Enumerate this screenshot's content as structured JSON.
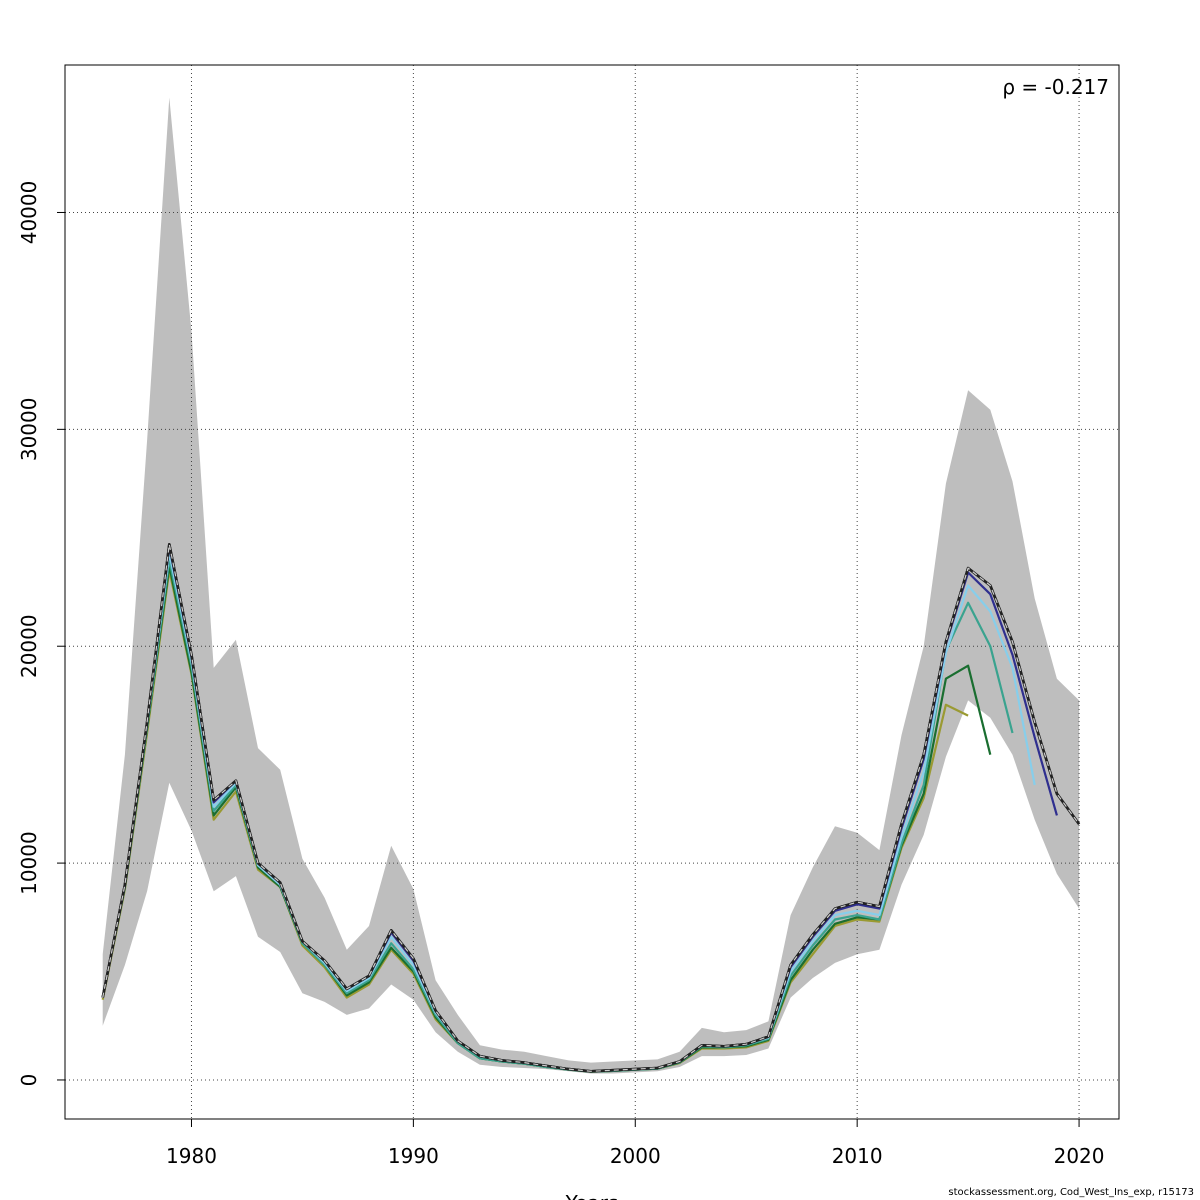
{
  "chart_data": {
    "type": "line",
    "title": "",
    "xlabel": "Years",
    "ylabel": "",
    "annotation": "ρ = -0.217",
    "xlim": [
      1974.3,
      2021.8
    ],
    "ylim": [
      -1800,
      46800
    ],
    "x_ticks": [
      1980,
      1990,
      2000,
      2010,
      2020
    ],
    "y_ticks": [
      0,
      10000,
      20000,
      30000,
      40000
    ],
    "grid": true,
    "legend": "none",
    "confidence_band": {
      "x": [
        1976,
        1977,
        1978,
        1979,
        1980,
        1981,
        1982,
        1983,
        1984,
        1985,
        1986,
        1987,
        1988,
        1989,
        1990,
        1991,
        1992,
        1993,
        1994,
        1995,
        1996,
        1997,
        1998,
        1999,
        2000,
        2001,
        2002,
        2003,
        2004,
        2005,
        2006,
        2007,
        2008,
        2009,
        2010,
        2011,
        2012,
        2013,
        2014,
        2015,
        2016,
        2017,
        2018,
        2019,
        2020
      ],
      "lower": [
        2500,
        5300,
        8700,
        13700,
        11500,
        8700,
        9400,
        6600,
        5900,
        4000,
        3600,
        3000,
        3300,
        4400,
        3700,
        2200,
        1300,
        700,
        600,
        550,
        500,
        400,
        300,
        300,
        350,
        400,
        600,
        1100,
        1100,
        1150,
        1450,
        3800,
        4700,
        5400,
        5800,
        6000,
        9000,
        11300,
        14900,
        17500,
        16700,
        15000,
        12000,
        9500,
        7900
      ],
      "upper": [
        5800,
        15000,
        29500,
        45300,
        34500,
        19000,
        20300,
        15300,
        14300,
        10200,
        8400,
        6000,
        7100,
        10800,
        8800,
        4600,
        3000,
        1600,
        1400,
        1300,
        1100,
        900,
        800,
        850,
        900,
        950,
        1300,
        2400,
        2200,
        2300,
        2700,
        7600,
        9800,
        11700,
        11400,
        10600,
        15900,
        20000,
        27500,
        31800,
        30900,
        27600,
        22200,
        18500,
        17500
      ]
    },
    "series": [
      {
        "x": [
          1976,
          1977,
          1978,
          1979,
          1980,
          1981,
          1982,
          1983,
          1984,
          1985,
          1986,
          1987,
          1988,
          1989,
          1990,
          1991,
          1992,
          1993,
          1994,
          1995,
          1996,
          1997,
          1998,
          1999,
          2000,
          2001,
          2002,
          2003,
          2004,
          2005,
          2006,
          2007,
          2008,
          2009,
          2010,
          2011,
          2012,
          2013,
          2014,
          2015,
          2016,
          2017,
          2018,
          2019,
          2020
        ],
        "values": [
          3800,
          9000,
          16500,
          24700,
          19600,
          12900,
          13800,
          10000,
          9100,
          6400,
          5500,
          4200,
          4800,
          6900,
          5600,
          3200,
          1800,
          1100,
          900,
          800,
          650,
          500,
          400,
          450,
          500,
          550,
          850,
          1600,
          1550,
          1650,
          2000,
          5300,
          6700,
          7900,
          8200,
          8000,
          11800,
          15000,
          20200,
          23600,
          22800,
          20200,
          16500,
          13200,
          11800
        ],
        "color": "#222222",
        "width": 2.6,
        "dashed": false
      },
      {
        "x": [
          1976,
          1977,
          1978,
          1979,
          1980,
          1981,
          1982,
          1983,
          1984,
          1985,
          1986,
          1987,
          1988,
          1989,
          1990,
          1991,
          1992,
          1993,
          1994,
          1995,
          1996,
          1997,
          1998,
          1999,
          2000,
          2001,
          2002,
          2003,
          2004,
          2005,
          2006,
          2007,
          2008,
          2009,
          2010,
          2011,
          2012,
          2013,
          2014,
          2015,
          2016,
          2017,
          2018,
          2019,
          2020
        ],
        "values": [
          3800,
          9000,
          16500,
          24700,
          19600,
          12900,
          13800,
          10000,
          9100,
          6400,
          5500,
          4200,
          4800,
          6900,
          5600,
          3200,
          1800,
          1100,
          900,
          800,
          650,
          500,
          400,
          450,
          500,
          550,
          850,
          1600,
          1550,
          1650,
          2000,
          5300,
          6700,
          7900,
          8200,
          8000,
          11800,
          15000,
          20200,
          23600,
          22800,
          20200,
          16500,
          13200,
          11800
        ],
        "color": "#cccccc",
        "width": 1.2,
        "dashed": true
      },
      {
        "x": [
          1976,
          1977,
          1978,
          1979,
          1980,
          1981,
          1982,
          1983,
          1984,
          1985,
          1986,
          1987,
          1988,
          1989,
          1990,
          1991,
          1992,
          1993,
          1994,
          1995,
          1996,
          1997,
          1998,
          1999,
          2000,
          2001,
          2002,
          2003,
          2004,
          2005,
          2006,
          2007,
          2008,
          2009,
          2010,
          2011,
          2012,
          2013,
          2014,
          2015,
          2016,
          2017,
          2018,
          2019
        ],
        "values": [
          3800,
          9000,
          16500,
          24600,
          19500,
          12800,
          13800,
          10000,
          9100,
          6400,
          5500,
          4200,
          4800,
          6800,
          5500,
          3200,
          1800,
          1100,
          900,
          800,
          650,
          500,
          400,
          450,
          500,
          550,
          850,
          1600,
          1550,
          1650,
          2000,
          5200,
          6600,
          7800,
          8100,
          7900,
          11600,
          14800,
          20100,
          23400,
          22400,
          19600,
          15800,
          12200
        ],
        "color": "#2f2f8f",
        "width": 2.2,
        "dashed": false
      },
      {
        "x": [
          1976,
          1977,
          1978,
          1979,
          1980,
          1981,
          1982,
          1983,
          1984,
          1985,
          1986,
          1987,
          1988,
          1989,
          1990,
          1991,
          1992,
          1993,
          1994,
          1995,
          1996,
          1997,
          1998,
          1999,
          2000,
          2001,
          2002,
          2003,
          2004,
          2005,
          2006,
          2007,
          2008,
          2009,
          2010,
          2011,
          2012,
          2013,
          2014,
          2015,
          2016,
          2017,
          2018
        ],
        "values": [
          3800,
          9000,
          16400,
          24300,
          19300,
          12600,
          13700,
          9900,
          9000,
          6400,
          5400,
          4100,
          4700,
          6600,
          5300,
          3100,
          1800,
          1100,
          900,
          800,
          650,
          500,
          400,
          450,
          500,
          550,
          850,
          1600,
          1550,
          1650,
          1950,
          5000,
          6400,
          7600,
          7800,
          7600,
          11200,
          14200,
          19700,
          22800,
          21600,
          19000,
          13600
        ],
        "color": "#87ceeb",
        "width": 2.2,
        "dashed": false
      },
      {
        "x": [
          1976,
          1977,
          1978,
          1979,
          1980,
          1981,
          1982,
          1983,
          1984,
          1985,
          1986,
          1987,
          1988,
          1989,
          1990,
          1991,
          1992,
          1993,
          1994,
          1995,
          1996,
          1997,
          1998,
          1999,
          2000,
          2001,
          2002,
          2003,
          2004,
          2005,
          2006,
          2007,
          2008,
          2009,
          2010,
          2011,
          2012,
          2013,
          2014,
          2015,
          2016,
          2017
        ],
        "values": [
          3800,
          8900,
          16300,
          24000,
          19100,
          12400,
          13600,
          9900,
          9000,
          6300,
          5300,
          4000,
          4600,
          6300,
          5100,
          3000,
          1700,
          1000,
          850,
          750,
          600,
          480,
          380,
          420,
          480,
          520,
          820,
          1550,
          1500,
          1600,
          1900,
          4800,
          6200,
          7400,
          7600,
          7400,
          10900,
          13600,
          19800,
          22000,
          20000,
          16000
        ],
        "color": "#3aa38f",
        "width": 2.2,
        "dashed": false
      },
      {
        "x": [
          1976,
          1977,
          1978,
          1979,
          1980,
          1981,
          1982,
          1983,
          1984,
          1985,
          1986,
          1987,
          1988,
          1989,
          1990,
          1991,
          1992,
          1993,
          1994,
          1995,
          1996,
          1997,
          1998,
          1999,
          2000,
          2001,
          2002,
          2003,
          2004,
          2005,
          2006,
          2007,
          2008,
          2009,
          2010,
          2011,
          2012,
          2013,
          2014,
          2015,
          2016
        ],
        "values": [
          3800,
          8900,
          16200,
          23700,
          18800,
          12200,
          13500,
          9800,
          8900,
          6300,
          5300,
          3900,
          4500,
          6100,
          5000,
          2900,
          1700,
          1000,
          850,
          750,
          600,
          480,
          380,
          420,
          480,
          520,
          800,
          1500,
          1500,
          1550,
          1850,
          4600,
          6000,
          7200,
          7500,
          7400,
          10800,
          13200,
          18500,
          19100,
          15000
        ],
        "color": "#1a6e30",
        "width": 2.2,
        "dashed": false
      },
      {
        "x": [
          1976,
          1977,
          1978,
          1979,
          1980,
          1981,
          1982,
          1983,
          1984,
          1985,
          1986,
          1987,
          1988,
          1989,
          1990,
          1991,
          1992,
          1993,
          1994,
          1995,
          1996,
          1997,
          1998,
          1999,
          2000,
          2001,
          2002,
          2003,
          2004,
          2005,
          2006,
          2007,
          2008,
          2009,
          2010,
          2011,
          2012,
          2013,
          2014,
          2015
        ],
        "values": [
          3700,
          8800,
          16000,
          23500,
          18700,
          12000,
          13300,
          9700,
          8900,
          6200,
          5200,
          3800,
          4400,
          6000,
          4900,
          2800,
          1700,
          1000,
          850,
          750,
          600,
          480,
          380,
          420,
          480,
          520,
          780,
          1450,
          1450,
          1500,
          1800,
          4500,
          5800,
          7100,
          7400,
          7300,
          10700,
          13000,
          17300,
          16800
        ],
        "color": "#9a9a32",
        "width": 2.2,
        "dashed": false
      }
    ]
  },
  "footer": {
    "credit": "stockassessment.org, Cod_West_Ins_exp, r15173"
  }
}
